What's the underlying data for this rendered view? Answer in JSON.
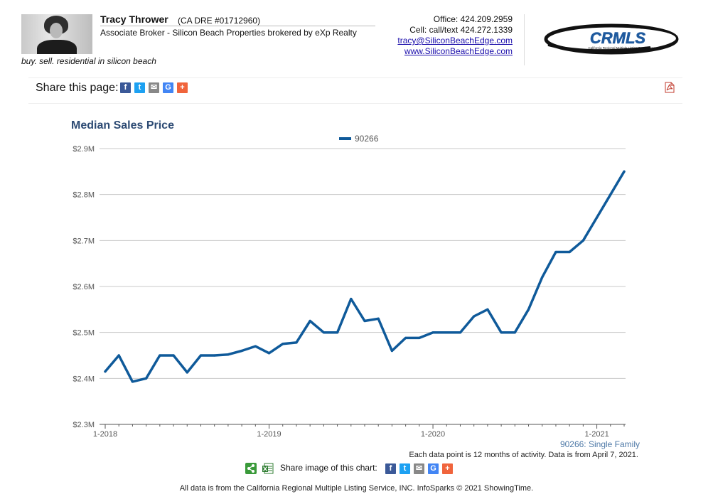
{
  "agent": {
    "name": "Tracy Thrower",
    "license": "(CA DRE #01712960)",
    "title": "Associate Broker - Silicon Beach Properties brokered by eXp Realty",
    "tagline": "buy. sell. residential in silicon beach",
    "photo_icon": "agent-photo"
  },
  "contact": {
    "office": "Office: 424.209.2959",
    "cell": "Cell: call/text 424.272.1339",
    "email": "tracy@SiliconBeachEdge.com",
    "website": "www.SiliconBeachEdge.com"
  },
  "logo": {
    "text": "CRMLS",
    "subtext": "California Regional Multiple Listing Service, Inc.",
    "color": "#1f5a9e"
  },
  "share": {
    "label": "Share this page:",
    "icons": [
      {
        "name": "facebook-icon",
        "glyph": "f",
        "color": "#3b5998"
      },
      {
        "name": "twitter-icon",
        "glyph": "t",
        "color": "#1da1f2"
      },
      {
        "name": "email-icon",
        "glyph": "✉",
        "color": "#888888"
      },
      {
        "name": "google-icon",
        "glyph": "G",
        "color": "#4285f4"
      },
      {
        "name": "more-icon",
        "glyph": "+",
        "color": "#f0643c"
      }
    ],
    "pdf_icon": "pdf-icon"
  },
  "chart_data": {
    "type": "line",
    "title": "Median Sales Price",
    "xlabel": "",
    "ylabel": "",
    "x_tick_labels": [
      "1-2018",
      "1-2019",
      "1-2020",
      "1-2021"
    ],
    "y_tick_labels": [
      "$2.3M",
      "$2.4M",
      "$2.5M",
      "$2.6M",
      "$2.7M",
      "$2.8M",
      "$2.9M"
    ],
    "ylim": [
      2300000,
      2900000
    ],
    "grid": true,
    "legend_position": "top-center",
    "series": [
      {
        "name": "90266",
        "color": "#0f5a9a",
        "x": [
          "1-2018",
          "2-2018",
          "3-2018",
          "4-2018",
          "5-2018",
          "6-2018",
          "7-2018",
          "8-2018",
          "9-2018",
          "10-2018",
          "11-2018",
          "12-2018",
          "1-2019",
          "2-2019",
          "3-2019",
          "4-2019",
          "5-2019",
          "6-2019",
          "7-2019",
          "8-2019",
          "9-2019",
          "10-2019",
          "11-2019",
          "12-2019",
          "1-2020",
          "2-2020",
          "3-2020",
          "4-2020",
          "5-2020",
          "6-2020",
          "7-2020",
          "8-2020",
          "9-2020",
          "10-2020",
          "11-2020",
          "12-2020",
          "1-2021",
          "2-2021",
          "3-2021"
        ],
        "values": [
          2415000,
          2450000,
          2393000,
          2400000,
          2450000,
          2450000,
          2413000,
          2450000,
          2450000,
          2452000,
          2460000,
          2470000,
          2455000,
          2475000,
          2478000,
          2525000,
          2500000,
          2500000,
          2573000,
          2525000,
          2530000,
          2460000,
          2488000,
          2488000,
          2500000,
          2500000,
          2500000,
          2535000,
          2550000,
          2500000,
          2500000,
          2550000,
          2620000,
          2675000,
          2675000,
          2700000,
          2750000,
          2800000,
          2850000
        ]
      }
    ]
  },
  "chart_notes": {
    "series_note": "90266: Single Family",
    "activity_note": "Each data point is 12 months of activity. Data is from April 7, 2021."
  },
  "chart_share": {
    "label": "Share image of this chart:",
    "share_icon": "share-icon",
    "excel_icon": "excel-icon"
  },
  "footer": {
    "text": "All data is from the California Regional Multiple Listing Service, INC. InfoSparks © 2021 ShowingTime."
  }
}
